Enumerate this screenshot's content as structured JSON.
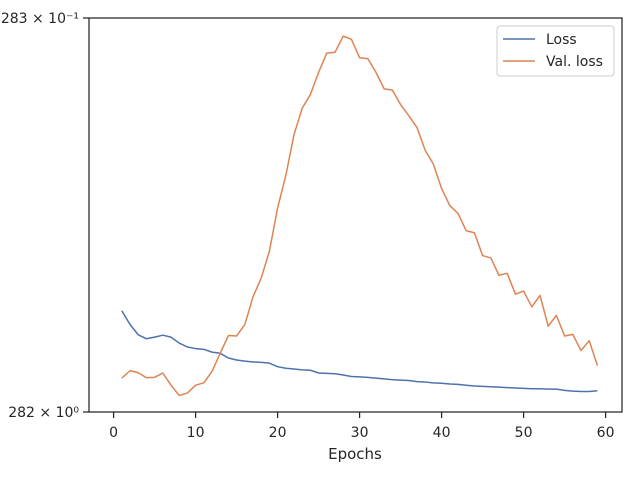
{
  "chart_data": {
    "type": "line",
    "xlabel": "Epochs",
    "ylabel": "",
    "title": "",
    "xlim": [
      -3,
      62
    ],
    "xticks": [
      0,
      10,
      20,
      30,
      40,
      50,
      60
    ],
    "ylim": [
      0,
      1
    ],
    "yticks": [
      {
        "value": 0,
        "label": "282 × 10⁰"
      },
      {
        "value": 1,
        "label": "283 × 10⁻¹"
      }
    ],
    "grid": false,
    "legend_position": "top-right",
    "series": [
      {
        "name": "Loss",
        "color": "#4c72b0",
        "x": [
          1,
          2,
          3,
          4,
          5,
          6,
          7,
          8,
          9,
          10,
          11,
          12,
          13,
          14,
          15,
          16,
          17,
          18,
          19,
          20,
          21,
          22,
          23,
          24,
          25,
          26,
          27,
          28,
          29,
          30,
          31,
          32,
          33,
          34,
          35,
          36,
          37,
          38,
          39,
          40,
          41,
          42,
          43,
          44,
          45,
          46,
          47,
          48,
          49,
          50,
          51,
          52,
          53,
          54,
          55,
          56,
          57,
          58,
          59
        ],
        "values": [
          0.257,
          0.222,
          0.196,
          0.186,
          0.19,
          0.195,
          0.19,
          0.175,
          0.165,
          0.161,
          0.159,
          0.152,
          0.149,
          0.137,
          0.132,
          0.129,
          0.127,
          0.126,
          0.124,
          0.115,
          0.111,
          0.109,
          0.107,
          0.106,
          0.099,
          0.098,
          0.097,
          0.094,
          0.09,
          0.089,
          0.088,
          0.086,
          0.084,
          0.082,
          0.081,
          0.08,
          0.077,
          0.076,
          0.074,
          0.073,
          0.071,
          0.07,
          0.068,
          0.066,
          0.065,
          0.064,
          0.063,
          0.062,
          0.061,
          0.06,
          0.059,
          0.059,
          0.058,
          0.058,
          0.055,
          0.053,
          0.052,
          0.052,
          0.054
        ]
      },
      {
        "name": "Val. loss",
        "color": "#dd8452",
        "x": [
          1,
          2,
          3,
          4,
          5,
          6,
          7,
          8,
          9,
          10,
          11,
          12,
          13,
          14,
          15,
          16,
          17,
          18,
          19,
          20,
          21,
          22,
          23,
          24,
          25,
          26,
          27,
          28,
          29,
          30,
          31,
          32,
          33,
          34,
          35,
          36,
          37,
          38,
          39,
          40,
          41,
          42,
          43,
          44,
          45,
          46,
          47,
          48,
          49,
          50,
          51,
          52,
          53,
          54,
          55,
          56,
          57,
          58,
          59
        ],
        "values": [
          0.086,
          0.105,
          0.1,
          0.087,
          0.088,
          0.099,
          0.068,
          0.042,
          0.048,
          0.068,
          0.074,
          0.103,
          0.149,
          0.194,
          0.193,
          0.222,
          0.292,
          0.34,
          0.408,
          0.518,
          0.6,
          0.704,
          0.771,
          0.806,
          0.862,
          0.911,
          0.913,
          0.954,
          0.946,
          0.899,
          0.897,
          0.862,
          0.82,
          0.817,
          0.78,
          0.752,
          0.722,
          0.664,
          0.629,
          0.567,
          0.524,
          0.504,
          0.46,
          0.455,
          0.397,
          0.391,
          0.347,
          0.352,
          0.299,
          0.307,
          0.267,
          0.296,
          0.218,
          0.245,
          0.193,
          0.197,
          0.156,
          0.181,
          0.118
        ]
      }
    ]
  }
}
